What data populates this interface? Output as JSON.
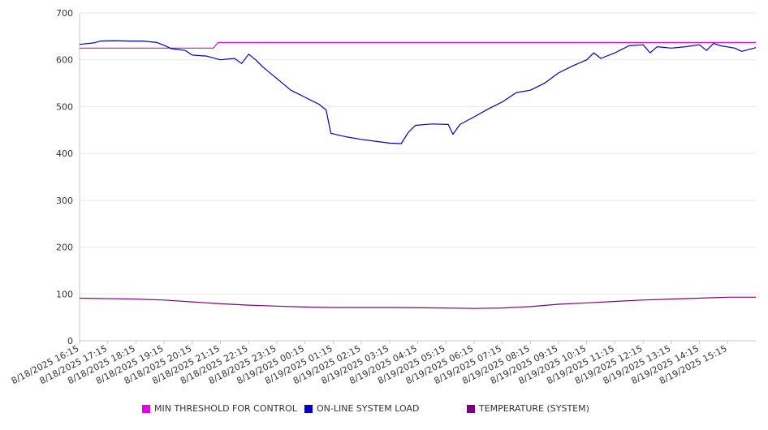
{
  "chart_data": {
    "type": "line",
    "title": "",
    "xlabel": "",
    "ylabel": "",
    "ylim": [
      0,
      700
    ],
    "yticks": [
      0,
      100,
      200,
      300,
      400,
      500,
      600,
      700
    ],
    "grid": true,
    "legend_position": "bottom",
    "x_tick_labels": [
      "8/18/2025 16:15",
      "8/18/2025 17:15",
      "8/18/2025 18:15",
      "8/18/2025 19:15",
      "8/18/2025 20:15",
      "8/18/2025 21:15",
      "8/18/2025 22:15",
      "8/18/2025 23:15",
      "8/19/2025 00:15",
      "8/19/2025 01:15",
      "8/19/2025 02:15",
      "8/19/2025 03:15",
      "8/19/2025 04:15",
      "8/19/2025 05:15",
      "8/19/2025 06:15",
      "8/19/2025 07:15",
      "8/19/2025 08:15",
      "8/19/2025 09:15",
      "8/19/2025 10:15",
      "8/19/2025 11:15",
      "8/19/2025 12:15",
      "8/19/2025 13:15",
      "8/19/2025 14:15",
      "8/19/2025 15:15"
    ],
    "x_start": "8/18/2025 16:15",
    "x_end": "8/19/2025 16:15",
    "series": [
      {
        "name": "MIN THRESHOLD FOR CONTROL",
        "color": "#e600e6",
        "points": [
          [
            "8/18/2025 16:15",
            625
          ],
          [
            "8/18/2025 21:00",
            625
          ],
          [
            "8/18/2025 21:10",
            637
          ],
          [
            "8/19/2025 16:15",
            637
          ]
        ]
      },
      {
        "name": "ON-LINE SYSTEM LOAD",
        "color": "#0000cc",
        "points": [
          [
            "8/18/2025 16:15",
            633
          ],
          [
            "8/18/2025 16:45",
            636
          ],
          [
            "8/18/2025 17:00",
            640
          ],
          [
            "8/18/2025 17:30",
            641
          ],
          [
            "8/18/2025 18:00",
            640
          ],
          [
            "8/18/2025 18:30",
            640
          ],
          [
            "8/18/2025 19:00",
            637
          ],
          [
            "8/18/2025 19:15",
            631
          ],
          [
            "8/18/2025 19:30",
            624
          ],
          [
            "8/18/2025 20:00",
            620
          ],
          [
            "8/18/2025 20:15",
            610
          ],
          [
            "8/18/2025 20:45",
            608
          ],
          [
            "8/18/2025 21:15",
            600
          ],
          [
            "8/18/2025 21:45",
            603
          ],
          [
            "8/18/2025 22:00",
            592
          ],
          [
            "8/18/2025 22:15",
            612
          ],
          [
            "8/18/2025 22:30",
            600
          ],
          [
            "8/18/2025 22:45",
            585
          ],
          [
            "8/18/2025 23:15",
            560
          ],
          [
            "8/18/2025 23:45",
            535
          ],
          [
            "8/19/2025 00:15",
            520
          ],
          [
            "8/19/2025 00:45",
            505
          ],
          [
            "8/19/2025 01:00",
            493
          ],
          [
            "8/19/2025 01:10",
            443
          ],
          [
            "8/19/2025 01:45",
            435
          ],
          [
            "8/19/2025 02:15",
            430
          ],
          [
            "8/19/2025 02:45",
            426
          ],
          [
            "8/19/2025 03:15",
            422
          ],
          [
            "8/19/2025 03:40",
            421
          ],
          [
            "8/19/2025 03:55",
            445
          ],
          [
            "8/19/2025 04:10",
            460
          ],
          [
            "8/19/2025 04:45",
            463
          ],
          [
            "8/19/2025 05:20",
            462
          ],
          [
            "8/19/2025 05:30",
            441
          ],
          [
            "8/19/2025 05:45",
            462
          ],
          [
            "8/19/2025 06:15",
            478
          ],
          [
            "8/19/2025 06:45",
            495
          ],
          [
            "8/19/2025 07:15",
            510
          ],
          [
            "8/19/2025 07:45",
            530
          ],
          [
            "8/19/2025 08:15",
            535
          ],
          [
            "8/19/2025 08:45",
            550
          ],
          [
            "8/19/2025 09:15",
            572
          ],
          [
            "8/19/2025 09:45",
            587
          ],
          [
            "8/19/2025 10:15",
            600
          ],
          [
            "8/19/2025 10:30",
            615
          ],
          [
            "8/19/2025 10:45",
            603
          ],
          [
            "8/19/2025 11:15",
            615
          ],
          [
            "8/19/2025 11:45",
            630
          ],
          [
            "8/19/2025 12:15",
            632
          ],
          [
            "8/19/2025 12:30",
            615
          ],
          [
            "8/19/2025 12:45",
            628
          ],
          [
            "8/19/2025 13:15",
            625
          ],
          [
            "8/19/2025 13:45",
            628
          ],
          [
            "8/19/2025 14:15",
            632
          ],
          [
            "8/19/2025 14:30",
            620
          ],
          [
            "8/19/2025 14:45",
            635
          ],
          [
            "8/19/2025 15:00",
            630
          ],
          [
            "8/19/2025 15:30",
            625
          ],
          [
            "8/19/2025 15:45",
            618
          ],
          [
            "8/19/2025 16:15",
            626
          ]
        ]
      },
      {
        "name": "TEMPERATURE (SYSTEM)",
        "color": "#800080",
        "points": [
          [
            "8/18/2025 16:15",
            91
          ],
          [
            "8/18/2025 18:15",
            89
          ],
          [
            "8/18/2025 19:15",
            87
          ],
          [
            "8/18/2025 20:15",
            83
          ],
          [
            "8/18/2025 21:15",
            79
          ],
          [
            "8/18/2025 22:15",
            76
          ],
          [
            "8/18/2025 23:15",
            74
          ],
          [
            "8/19/2025 00:15",
            72
          ],
          [
            "8/19/2025 01:15",
            71
          ],
          [
            "8/19/2025 03:15",
            71
          ],
          [
            "8/19/2025 05:15",
            70
          ],
          [
            "8/19/2025 06:15",
            69
          ],
          [
            "8/19/2025 07:15",
            70
          ],
          [
            "8/19/2025 08:15",
            73
          ],
          [
            "8/19/2025 09:15",
            78
          ],
          [
            "8/19/2025 10:15",
            81
          ],
          [
            "8/19/2025 11:15",
            84
          ],
          [
            "8/19/2025 12:15",
            87
          ],
          [
            "8/19/2025 13:15",
            89
          ],
          [
            "8/19/2025 14:15",
            91
          ],
          [
            "8/19/2025 15:15",
            93
          ],
          [
            "8/19/2025 16:15",
            93
          ]
        ]
      }
    ]
  }
}
